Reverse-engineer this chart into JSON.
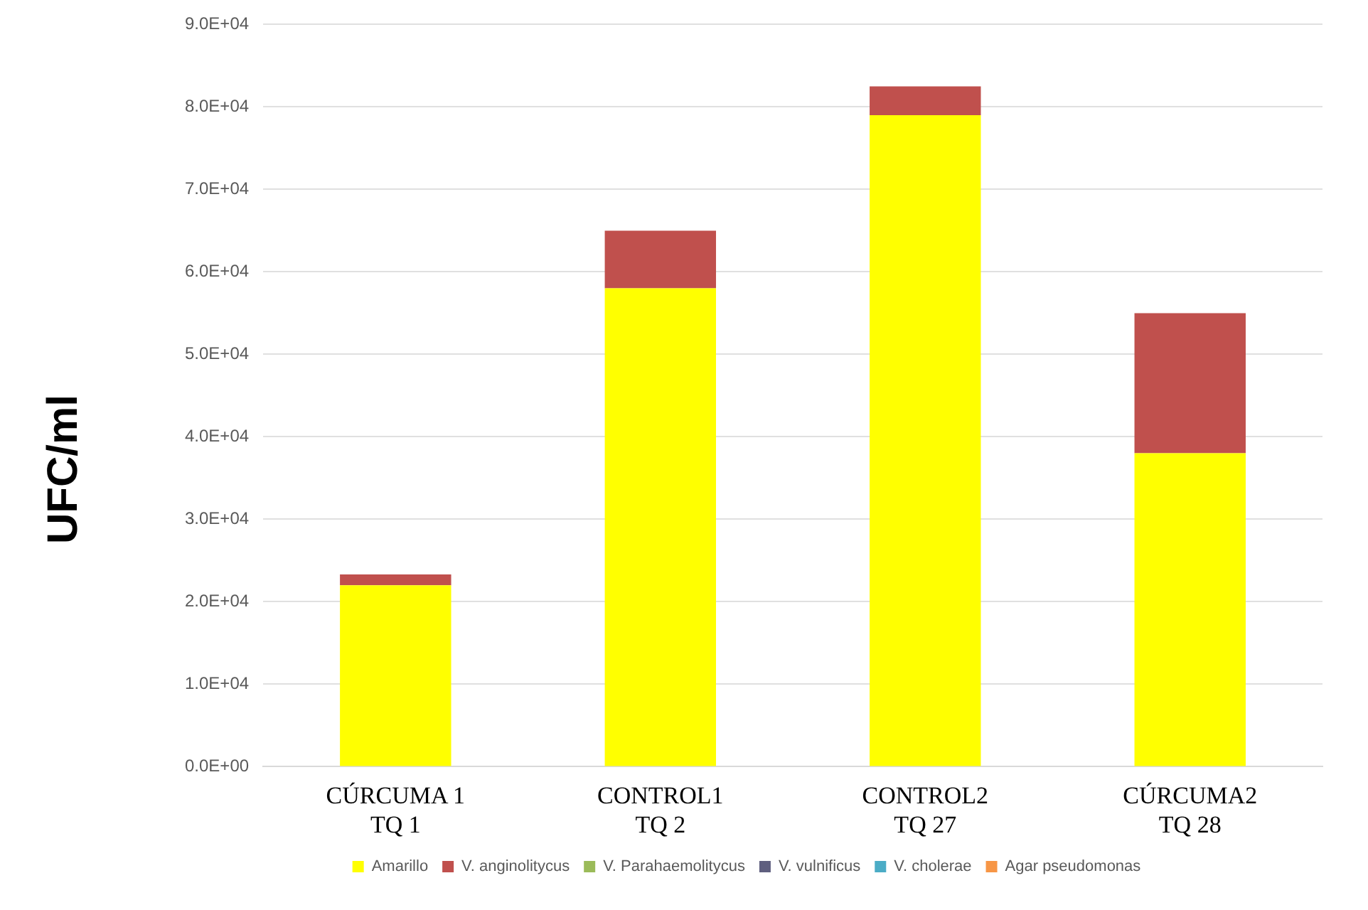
{
  "chart_data": {
    "type": "bar",
    "stacked": true,
    "ylabel": "UFC/ml",
    "categories": [
      "CÚRCUMA 1\nTQ 1",
      "CONTROL1\nTQ 2",
      "CONTROL2\nTQ 27",
      "CÚRCUMA2\nTQ 28"
    ],
    "series": [
      {
        "name": "Amarillo",
        "color": "#ffff00",
        "values": [
          22000,
          58000,
          79000,
          38000
        ]
      },
      {
        "name": "V. anginolitycus",
        "color": "#c0504d",
        "values": [
          1300,
          7000,
          3500,
          17000
        ]
      },
      {
        "name": "V. Parahaemolitycus",
        "color": "#9bbb59",
        "values": [
          0,
          0,
          0,
          0
        ]
      },
      {
        "name": "V. vulnificus",
        "color": "#5f5f7f",
        "values": [
          0,
          0,
          0,
          0
        ]
      },
      {
        "name": "V. cholerae",
        "color": "#4bacc6",
        "values": [
          0,
          0,
          0,
          0
        ]
      },
      {
        "name": "Agar pseudomonas",
        "color": "#f79646",
        "values": [
          0,
          0,
          0,
          0
        ]
      }
    ],
    "ylim": [
      0,
      90000
    ],
    "yticks": [
      {
        "value": 0,
        "label": "0.0E+00"
      },
      {
        "value": 10000,
        "label": "1.0E+04"
      },
      {
        "value": 20000,
        "label": "2.0E+04"
      },
      {
        "value": 30000,
        "label": "3.0E+04"
      },
      {
        "value": 40000,
        "label": "4.0E+04"
      },
      {
        "value": 50000,
        "label": "5.0E+04"
      },
      {
        "value": 60000,
        "label": "6.0E+04"
      },
      {
        "value": 70000,
        "label": "7.0E+04"
      },
      {
        "value": 80000,
        "label": "8.0E+04"
      },
      {
        "value": 90000,
        "label": "9.0E+04"
      }
    ],
    "grid": "y",
    "legend": "bottom"
  }
}
